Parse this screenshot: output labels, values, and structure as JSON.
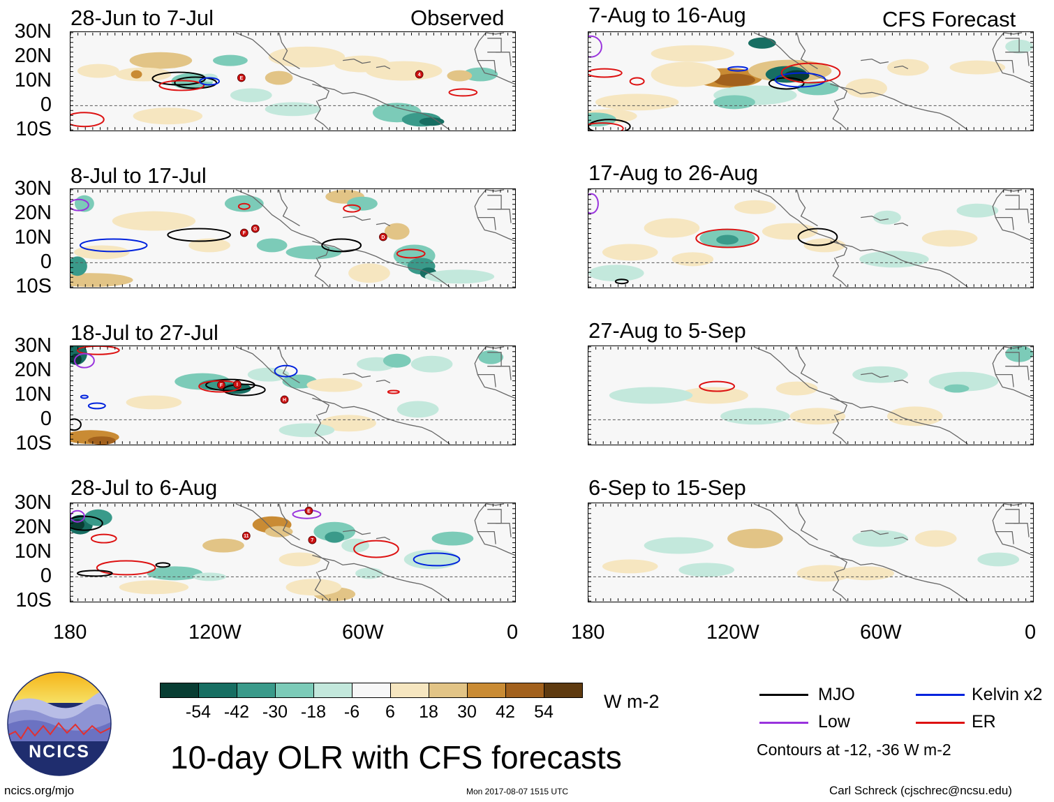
{
  "headers": {
    "left": "Observed",
    "right": "CFS Forecast"
  },
  "panels": [
    {
      "col": "left",
      "row": 0,
      "title": "28-Jun to 7-Jul"
    },
    {
      "col": "left",
      "row": 1,
      "title": "8-Jul to 17-Jul"
    },
    {
      "col": "left",
      "row": 2,
      "title": "18-Jul to 27-Jul"
    },
    {
      "col": "left",
      "row": 3,
      "title": "28-Jul to 6-Aug"
    },
    {
      "col": "right",
      "row": 0,
      "title": "7-Aug to 16-Aug"
    },
    {
      "col": "right",
      "row": 1,
      "title": "17-Aug to 26-Aug"
    },
    {
      "col": "right",
      "row": 2,
      "title": "27-Aug to 5-Sep"
    },
    {
      "col": "right",
      "row": 3,
      "title": "6-Sep to 15-Sep"
    }
  ],
  "lat_labels": [
    "30N",
    "20N",
    "10N",
    "0",
    "10S"
  ],
  "lon_labels": [
    "180",
    "120W",
    "60W",
    "0"
  ],
  "colorbar": {
    "colors": [
      "#083d33",
      "#176e62",
      "#3a9a8a",
      "#7ccbb8",
      "#c3e8dc",
      "#f7f7f7",
      "#f6e6c0",
      "#e2c486",
      "#c98b34",
      "#a2611d",
      "#5e3a10"
    ],
    "tick_labels": [
      "-54",
      "-42",
      "-30",
      "-18",
      "-6",
      "6",
      "18",
      "30",
      "42",
      "54"
    ],
    "units": "W m-2"
  },
  "contour_colors": {
    "MJO": "#000000",
    "Kelvin": "#0022dd",
    "Low": "#9933dd",
    "ER": "#dd1111"
  },
  "legend": {
    "items": [
      {
        "label": "MJO",
        "color": "#000000"
      },
      {
        "label": "Kelvin x2",
        "color": "#0022dd"
      },
      {
        "label": "Low",
        "color": "#9933dd"
      },
      {
        "label": "ER",
        "color": "#dd1111"
      }
    ],
    "note": "Contours at -12, -36 W m-2"
  },
  "main_title": "10-day OLR with CFS forecasts",
  "logo_text": "NCICS",
  "footer": {
    "left": "ncics.org/mjo",
    "center": "Mon 2017-08-07 1515 UTC",
    "right": "Carl Schreck (cjschrec@ncsu.edu)"
  },
  "storm_labels": [
    "E",
    "4",
    "F",
    "G",
    "D",
    "I",
    "H",
    "11",
    "7"
  ]
}
